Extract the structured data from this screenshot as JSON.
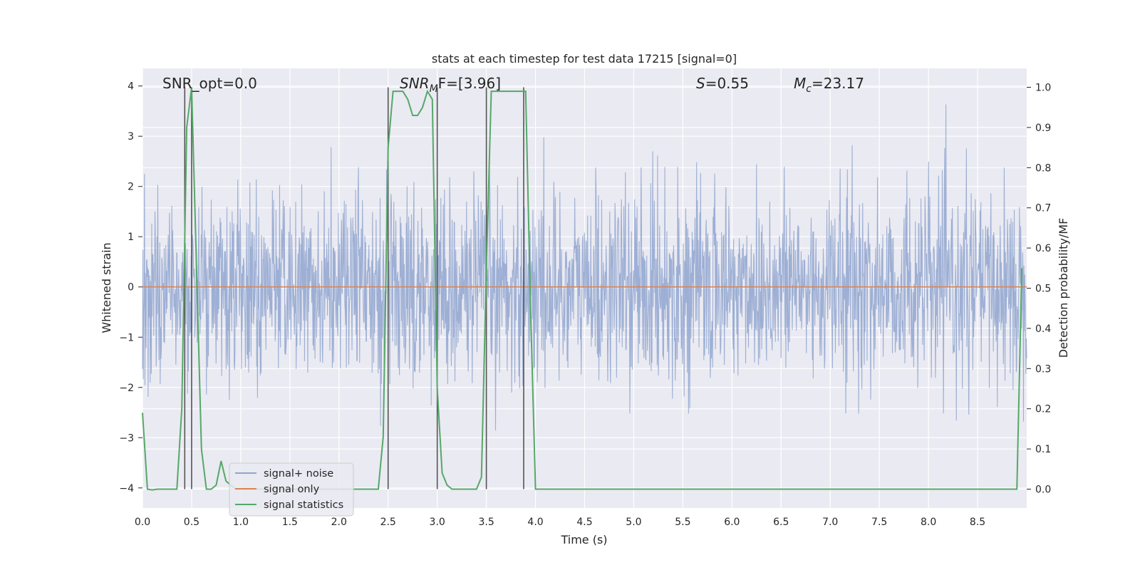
{
  "chart_data": {
    "type": "line",
    "title": "stats at each timestep for test data 17215 [signal=0]",
    "xlabel": "Time (s)",
    "ylabel": "Whitened strain",
    "ylabel_right": "Detection probability/MF",
    "xlim": [
      0.0,
      9.0
    ],
    "ylim": [
      -4.4,
      4.35
    ],
    "ylim_right": [
      -0.047,
      1.047
    ],
    "x_ticks": [
      "0.0",
      "0.5",
      "1.0",
      "1.5",
      "2.0",
      "2.5",
      "3.0",
      "3.5",
      "4.0",
      "4.5",
      "5.0",
      "5.5",
      "6.0",
      "6.5",
      "7.0",
      "7.5",
      "8.0",
      "8.5"
    ],
    "y_ticks": [
      "4",
      "3",
      "2",
      "1",
      "0",
      "−1",
      "−2",
      "−3",
      "−4"
    ],
    "y_right_ticks": [
      "1.0",
      "0.9",
      "0.8",
      "0.7",
      "0.6",
      "0.5",
      "0.4",
      "0.3",
      "0.2",
      "0.1",
      "0.0"
    ],
    "grid": true,
    "legend_position": "lower-left",
    "annotations": {
      "snr_opt": "SNR_opt=0.0",
      "snr_mf_main": "SNR",
      "snr_mf_sub": "M",
      "snr_mf_rest": "F=[3.96]",
      "s_main": "S",
      "s_rest": "=0.55",
      "mc_main": "M",
      "mc_sub": "c",
      "mc_rest": "=23.17"
    },
    "series": [
      {
        "name": "signal+ noise",
        "color": "#8fa5cf",
        "description_values": "whitened noise, amplitude roughly within -3.9 to 3.7",
        "approx_envelope": {
          "typical_max": 2.2,
          "typical_min": -2.2,
          "peak_max": 3.7,
          "peak_min": -4.0
        }
      },
      {
        "name": "signal only",
        "color": "#dd8452",
        "values_constant": 0.0
      },
      {
        "name": "signal statistics",
        "color": "#55a868",
        "axis": "right",
        "x": [
          0.0,
          0.05,
          0.1,
          0.15,
          0.2,
          0.25,
          0.3,
          0.35,
          0.4,
          0.45,
          0.5,
          0.55,
          0.6,
          0.65,
          0.7,
          0.75,
          0.8,
          0.85,
          0.9,
          0.95,
          1.0,
          1.05,
          1.1,
          1.15,
          1.2,
          1.25,
          1.3,
          1.35,
          1.4,
          1.45,
          1.5,
          1.55,
          1.6,
          1.65,
          1.7,
          1.75,
          1.8,
          1.85,
          1.9,
          1.95,
          2.0,
          2.05,
          2.1,
          2.15,
          2.2,
          2.25,
          2.3,
          2.35,
          2.4,
          2.45,
          2.5,
          2.55,
          2.6,
          2.65,
          2.7,
          2.75,
          2.8,
          2.85,
          2.9,
          2.95,
          3.0,
          3.05,
          3.1,
          3.15,
          3.2,
          3.25,
          3.3,
          3.35,
          3.4,
          3.45,
          3.5,
          3.55,
          3.6,
          3.65,
          3.7,
          3.75,
          3.8,
          3.85,
          3.9,
          3.95,
          4.0,
          4.05,
          4.1,
          8.9,
          8.95
        ],
        "y": [
          0.19,
          0.0,
          -0.002,
          0.0,
          0.0,
          0.0,
          0.0,
          0.0,
          0.2,
          0.9,
          1.0,
          0.55,
          0.1,
          0.0,
          0.0,
          0.01,
          0.07,
          0.02,
          0.01,
          0.0,
          0.0,
          0.0,
          0.0,
          0.0,
          0.0,
          0.0,
          0.0,
          0.0,
          0.0,
          0.0,
          0.0,
          0.0,
          0.0,
          0.0,
          0.0,
          0.0,
          0.0,
          0.0,
          0.0,
          0.0,
          0.0,
          0.0,
          0.0,
          0.0,
          0.0,
          0.0,
          0.0,
          0.0,
          0.0,
          0.13,
          0.85,
          0.99,
          0.99,
          0.99,
          0.97,
          0.93,
          0.93,
          0.95,
          0.99,
          0.97,
          0.25,
          0.04,
          0.01,
          0.0,
          0.0,
          0.0,
          0.0,
          0.0,
          0.0,
          0.03,
          0.55,
          0.99,
          0.99,
          0.99,
          0.99,
          0.99,
          0.99,
          0.99,
          0.99,
          0.45,
          0.0,
          0.0,
          0.0,
          0.0,
          0.55
        ]
      }
    ],
    "vertical_markers_x": [
      0.43,
      0.5,
      2.5,
      3.0,
      3.5,
      3.88
    ]
  }
}
